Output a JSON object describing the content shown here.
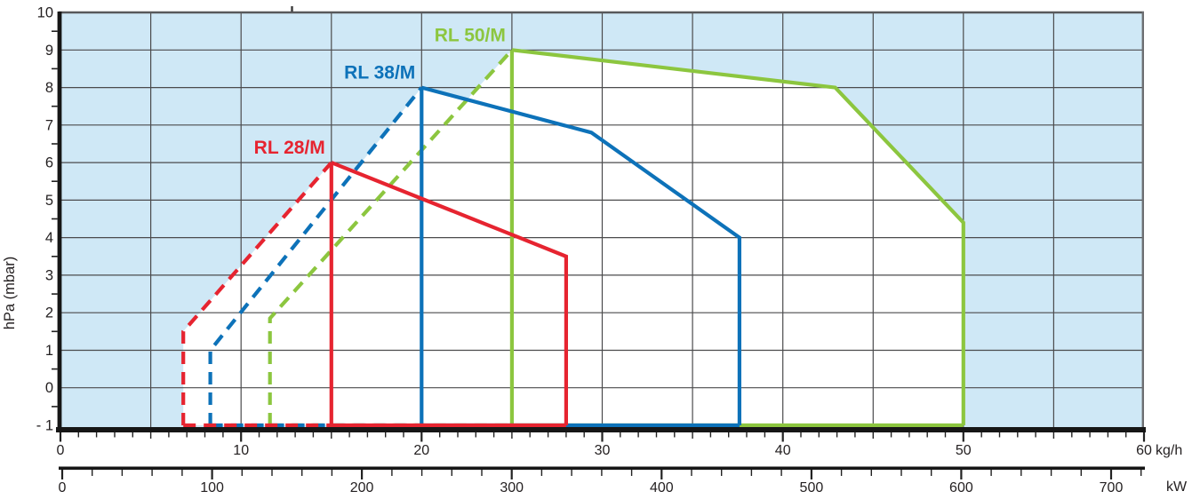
{
  "chart_data": {
    "type": "area",
    "ylabel": "hPa (mbar)",
    "x_axis_top": {
      "unit": "kg/h",
      "min": 0,
      "max": 60,
      "labeled_ticks": [
        0,
        10,
        20,
        30,
        40,
        50,
        60
      ],
      "minor_step": 1,
      "grid_step": 5
    },
    "x_axis_bottom": {
      "unit": "kW",
      "min": 0,
      "max": 700,
      "labeled_ticks": [
        0,
        100,
        200,
        300,
        400,
        500,
        600,
        700
      ],
      "minor_step": 20
    },
    "y_axis": {
      "unit": "hPa (mbar)",
      "min": -1,
      "max": 10,
      "labeled_ticks": [
        "10",
        "9",
        "8",
        "7",
        "6",
        "5",
        "4",
        "3",
        "2",
        "1",
        "0",
        "- 1"
      ],
      "minor_step": 0.5,
      "grid_step": 1
    },
    "series": [
      {
        "name": "RL 28/M",
        "color": "#e62430",
        "dashed_boundary": [
          [
            6.8,
            -1
          ],
          [
            6.8,
            1.5
          ],
          [
            15,
            6
          ]
        ],
        "solid_boundary": [
          [
            15,
            6
          ],
          [
            25.4,
            4
          ],
          [
            28,
            3.5
          ],
          [
            28,
            -1
          ]
        ],
        "modulation_split_kgh": 15
      },
      {
        "name": "RL 38/M",
        "color": "#0d72b9",
        "dashed_boundary": [
          [
            8.3,
            -1
          ],
          [
            8.3,
            1
          ],
          [
            20,
            8
          ]
        ],
        "solid_boundary": [
          [
            20,
            8
          ],
          [
            29.4,
            6.8
          ],
          [
            37.6,
            4
          ],
          [
            37.6,
            -1
          ]
        ],
        "modulation_split_kgh": 20
      },
      {
        "name": "RL 50/M",
        "color": "#8cc63f",
        "dashed_boundary": [
          [
            11.6,
            -1
          ],
          [
            11.6,
            1.85
          ],
          [
            25,
            9
          ]
        ],
        "solid_boundary": [
          [
            25,
            9
          ],
          [
            42.9,
            8
          ],
          [
            50,
            4.4
          ],
          [
            50,
            -1
          ]
        ],
        "modulation_split_kgh": 25
      }
    ],
    "colors": {
      "plot_bg": "#cfe8f6",
      "operating_region": "#ffffff",
      "grid": "#4b4b4d",
      "axis": "#161616",
      "frame": "#58595b",
      "text": "#231f20"
    }
  }
}
